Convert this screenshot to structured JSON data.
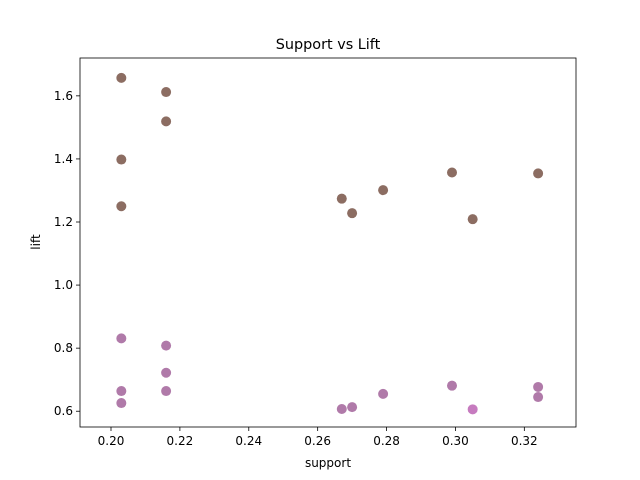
{
  "chart_data": {
    "type": "scatter",
    "title": "Support vs Lift",
    "xlabel": "support",
    "ylabel": "lift",
    "xlim": [
      0.191,
      0.335
    ],
    "ylim": [
      0.55,
      1.72
    ],
    "xticks": [
      0.2,
      0.22,
      0.24,
      0.26,
      0.28,
      0.3,
      0.32
    ],
    "xtick_labels": [
      "0.20",
      "0.22",
      "0.24",
      "0.26",
      "0.28",
      "0.30",
      "0.32"
    ],
    "yticks": [
      0.6,
      0.8,
      1.0,
      1.2,
      1.4,
      1.6
    ],
    "ytick_labels": [
      "0.6",
      "0.8",
      "1.0",
      "1.2",
      "1.4",
      "1.6"
    ],
    "grid": false,
    "colors": {
      "upper": "#8c6d62",
      "lower": "#b07aa9",
      "lower_highlight": "#c67bbf"
    },
    "points": [
      {
        "x": 0.203,
        "y": 1.657,
        "group": "upper"
      },
      {
        "x": 0.203,
        "y": 1.398,
        "group": "upper"
      },
      {
        "x": 0.203,
        "y": 1.25,
        "group": "upper"
      },
      {
        "x": 0.216,
        "y": 1.612,
        "group": "upper"
      },
      {
        "x": 0.216,
        "y": 1.519,
        "group": "upper"
      },
      {
        "x": 0.267,
        "y": 1.274,
        "group": "upper"
      },
      {
        "x": 0.27,
        "y": 1.228,
        "group": "upper"
      },
      {
        "x": 0.279,
        "y": 1.301,
        "group": "upper"
      },
      {
        "x": 0.299,
        "y": 1.357,
        "group": "upper"
      },
      {
        "x": 0.305,
        "y": 1.209,
        "group": "upper"
      },
      {
        "x": 0.324,
        "y": 1.354,
        "group": "upper"
      },
      {
        "x": 0.203,
        "y": 0.831,
        "group": "lower"
      },
      {
        "x": 0.203,
        "y": 0.664,
        "group": "lower"
      },
      {
        "x": 0.203,
        "y": 0.626,
        "group": "lower"
      },
      {
        "x": 0.216,
        "y": 0.808,
        "group": "lower"
      },
      {
        "x": 0.216,
        "y": 0.722,
        "group": "lower"
      },
      {
        "x": 0.216,
        "y": 0.664,
        "group": "lower"
      },
      {
        "x": 0.267,
        "y": 0.607,
        "group": "lower"
      },
      {
        "x": 0.27,
        "y": 0.613,
        "group": "lower"
      },
      {
        "x": 0.279,
        "y": 0.655,
        "group": "lower"
      },
      {
        "x": 0.299,
        "y": 0.681,
        "group": "lower"
      },
      {
        "x": 0.305,
        "y": 0.606,
        "group": "lower_highlight"
      },
      {
        "x": 0.324,
        "y": 0.677,
        "group": "lower"
      },
      {
        "x": 0.324,
        "y": 0.645,
        "group": "lower"
      }
    ]
  }
}
